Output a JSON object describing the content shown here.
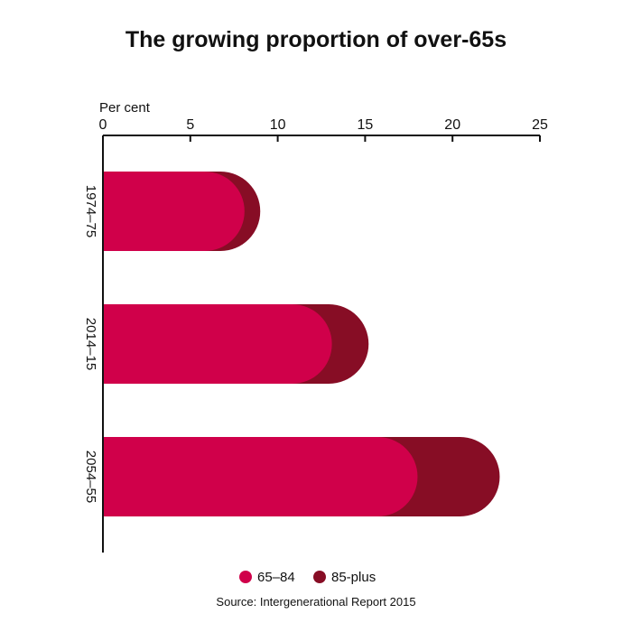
{
  "chart_data": {
    "type": "bar",
    "orientation": "horizontal",
    "stacked": true,
    "title": "The growing proportion of over-65s",
    "xlabel": "Per cent",
    "xlim": [
      0,
      25
    ],
    "x_ticks": [
      "0",
      "5",
      "10",
      "15",
      "20",
      "25"
    ],
    "categories": [
      "1974–75",
      "2014–15",
      "2054–55"
    ],
    "series": [
      {
        "name": "65–84",
        "color": "#d0004a",
        "values": [
          8.1,
          13.1,
          18.0
        ]
      },
      {
        "name": "85-plus",
        "color": "#870d25",
        "values": [
          0.9,
          2.1,
          4.7
        ]
      }
    ],
    "legend_position": "bottom",
    "grid": false,
    "source": "Source: Intergenerational Report 2015"
  }
}
